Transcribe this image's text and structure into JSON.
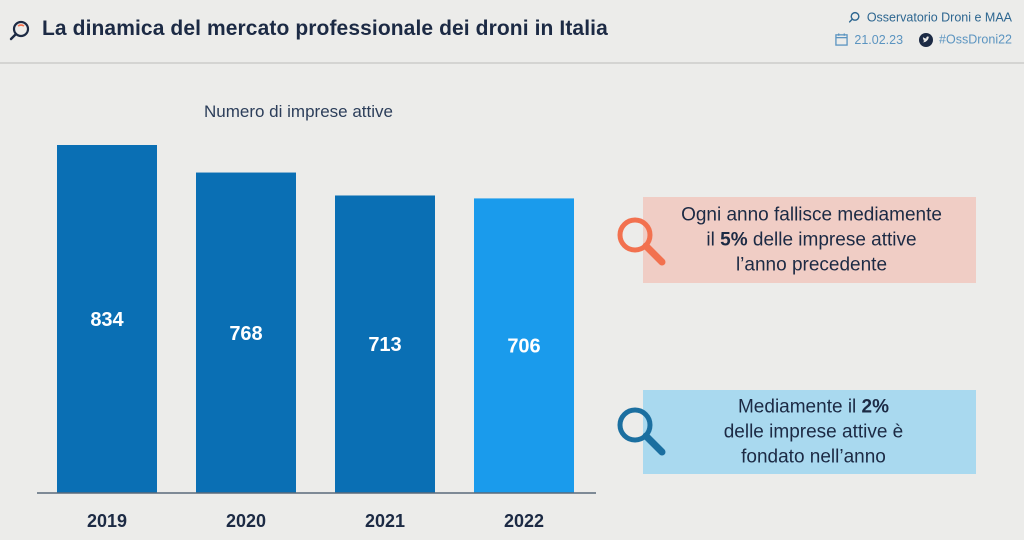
{
  "header": {
    "title": "La dinamica del mercato professionale dei droni in Italia",
    "source": "Osservatorio Droni e MAA",
    "date": "21.02.23",
    "hashtag": "#OssDroni22",
    "icons": [
      "drone-logo-icon",
      "calendar-icon",
      "twitter-icon"
    ]
  },
  "chart_data": {
    "type": "bar",
    "title": "Numero di imprese attive",
    "categories": [
      "2019",
      "2020",
      "2021",
      "2022"
    ],
    "values": [
      834,
      768,
      713,
      706
    ],
    "ylim": [
      0,
      834
    ],
    "xlabel": "",
    "ylabel": "",
    "colors": [
      "#0a6fb4",
      "#0a6fb4",
      "#0a6fb4",
      "#1a9bec"
    ],
    "label_color": "#ffffff",
    "axis_color": "#5a6a7a"
  },
  "callouts": {
    "closure": {
      "line1": "Ogni anno fallisce mediamente",
      "line2_pre": "il ",
      "line2_bold": "5%",
      "line2_post": " delle imprese attive",
      "line3": "l’anno precedente",
      "icon": "magnifier-icon",
      "icon_color": "#f2714f"
    },
    "founded": {
      "line1_pre": "Mediamente il ",
      "line1_bold": "2%",
      "line2": "delle imprese attive è",
      "line3": "fondato nell’anno",
      "icon": "magnifier-icon",
      "icon_color": "#1b6fa0"
    }
  }
}
